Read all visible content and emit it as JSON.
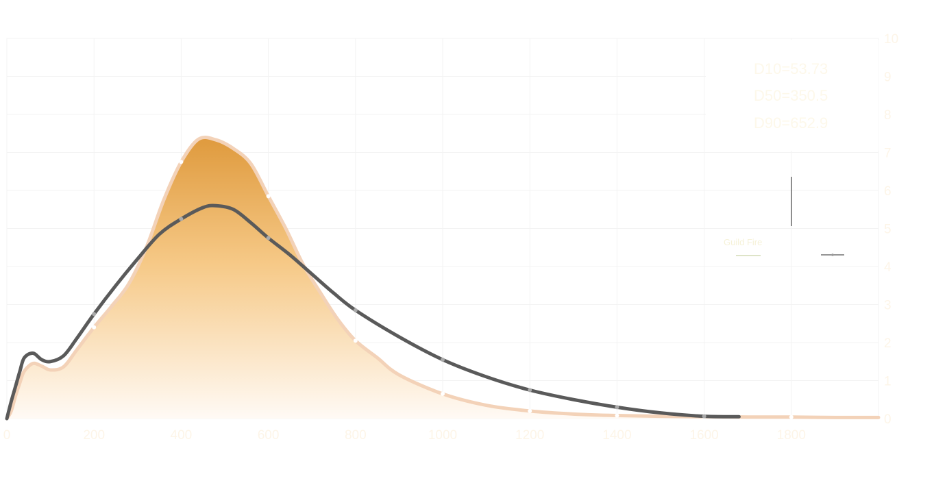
{
  "chart_data": {
    "type": "area",
    "xlim": [
      0,
      2000
    ],
    "ylim": [
      0,
      10
    ],
    "x_ticks": [
      0,
      200,
      400,
      600,
      800,
      1000,
      1200,
      1400,
      1600,
      1800
    ],
    "x_tick_labels": [
      "0",
      "200",
      "400",
      "600",
      "800",
      "1000",
      "1200",
      "1400",
      "1600",
      "1800"
    ],
    "y_ticks": [
      0,
      1,
      2,
      3,
      4,
      5,
      6,
      7,
      8,
      9,
      10
    ],
    "y_tick_labels": [
      "0",
      "1",
      "2",
      "3",
      "4",
      "5",
      "6",
      "7",
      "8",
      "9",
      "10"
    ],
    "grid": true,
    "y_axis_side": "right",
    "legend_position": "right",
    "stats": [
      "D10=53.73",
      "D50=350.5",
      "D90=652.9"
    ],
    "series": [
      {
        "name": "Guild Fire",
        "style": "filled-area",
        "color": "#f3d2b8",
        "fill_top": "#df9a3d",
        "fill_bottom": "#fffaf5",
        "x": [
          0,
          10,
          20,
          30,
          40,
          60,
          80,
          100,
          130,
          160,
          200,
          240,
          280,
          320,
          360,
          400,
          440,
          480,
          520,
          560,
          600,
          640,
          680,
          720,
          760,
          800,
          850,
          900,
          1000,
          1100,
          1200,
          1300,
          1400,
          1500,
          1600,
          1700,
          1800,
          1900,
          2000
        ],
        "y": [
          0.0,
          0.2,
          0.6,
          0.95,
          1.25,
          1.45,
          1.38,
          1.28,
          1.36,
          1.8,
          2.4,
          2.95,
          3.55,
          4.5,
          5.75,
          6.75,
          7.35,
          7.33,
          7.1,
          6.7,
          5.85,
          5.0,
          4.05,
          3.3,
          2.6,
          2.05,
          1.6,
          1.15,
          0.65,
          0.35,
          0.2,
          0.12,
          0.08,
          0.06,
          0.05,
          0.04,
          0.04,
          0.03,
          0.03
        ],
        "markers": [
          [
            200,
            2.4
          ],
          [
            400,
            6.75
          ],
          [
            600,
            5.85
          ],
          [
            800,
            2.05
          ],
          [
            1000,
            0.65
          ],
          [
            1200,
            0.2
          ],
          [
            1400,
            0.08
          ],
          [
            1600,
            0.05
          ],
          [
            1800,
            0.04
          ]
        ]
      },
      {
        "name": "",
        "style": "line",
        "color": "#5a5a5a",
        "marker_color": "#a9a9a9",
        "x": [
          0,
          10,
          20,
          30,
          40,
          60,
          80,
          100,
          130,
          160,
          200,
          250,
          300,
          350,
          400,
          450,
          480,
          520,
          560,
          600,
          650,
          700,
          750,
          800,
          900,
          1000,
          1100,
          1200,
          1300,
          1400,
          1500,
          1600,
          1680
        ],
        "y": [
          0.0,
          0.45,
          0.85,
          1.25,
          1.6,
          1.72,
          1.55,
          1.5,
          1.65,
          2.1,
          2.75,
          3.5,
          4.2,
          4.85,
          5.25,
          5.55,
          5.6,
          5.5,
          5.15,
          4.75,
          4.3,
          3.8,
          3.3,
          2.85,
          2.15,
          1.55,
          1.1,
          0.75,
          0.5,
          0.3,
          0.15,
          0.06,
          0.05
        ],
        "markers": [
          [
            200,
            2.75
          ],
          [
            400,
            5.25
          ],
          [
            600,
            4.75
          ],
          [
            800,
            2.85
          ],
          [
            1000,
            1.55
          ],
          [
            1200,
            0.75
          ],
          [
            1400,
            0.3
          ],
          [
            1600,
            0.06
          ]
        ]
      }
    ]
  }
}
